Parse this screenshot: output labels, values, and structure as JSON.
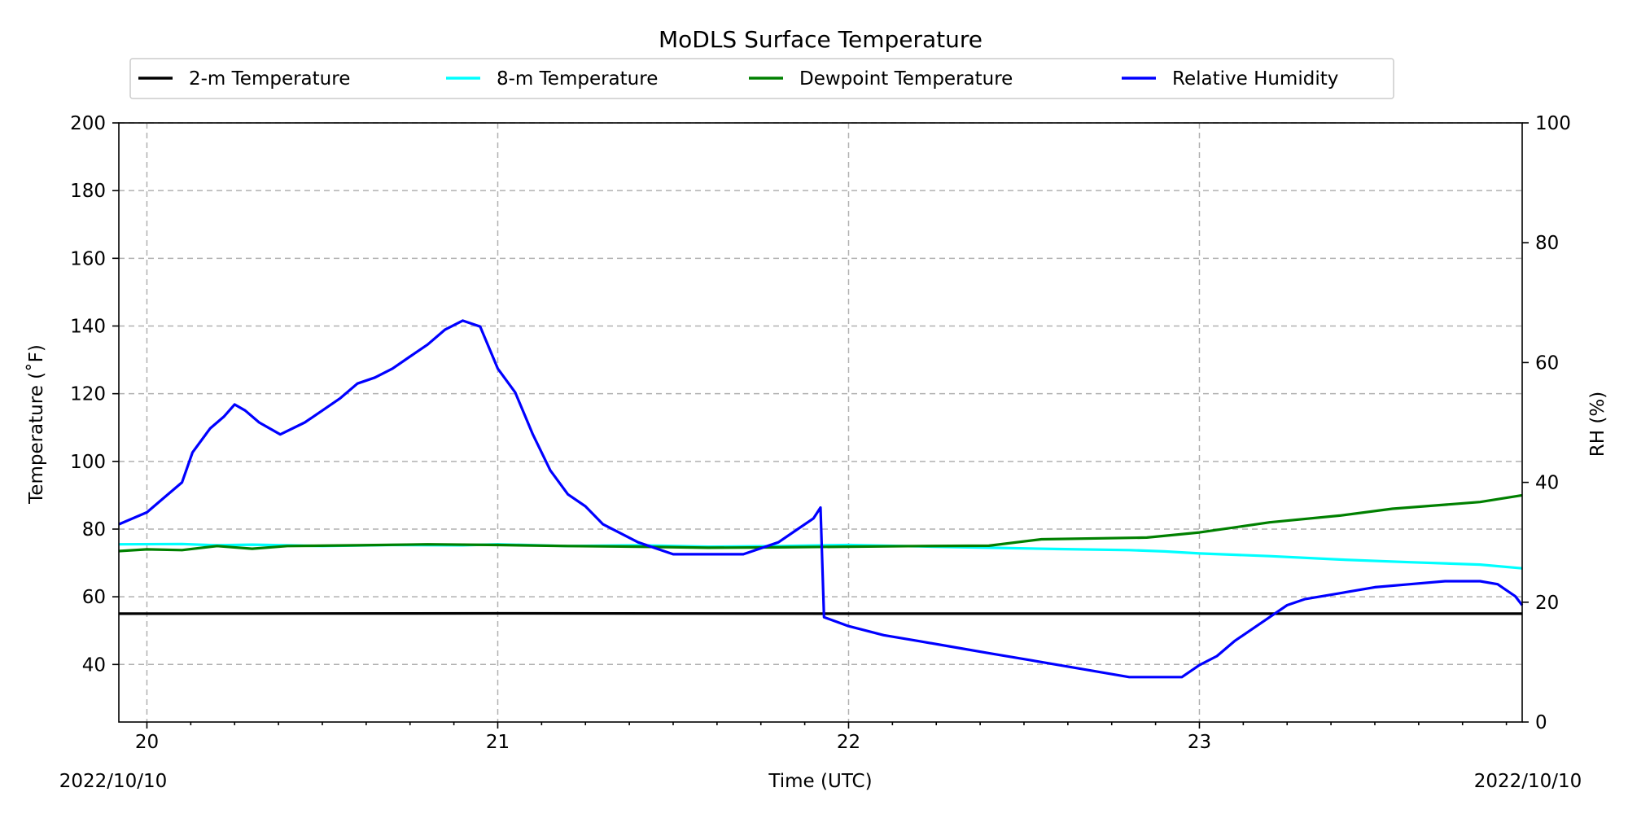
{
  "chart_data": {
    "type": "line",
    "title": "MoDLS Surface Temperature",
    "xlabel": "Time (UTC)",
    "ylabel_left": "Temperature ($^\\circ$F)",
    "ylabel_left_display": "Temperature (˚F)",
    "ylabel_right": "RH (%)",
    "x_start_label": "2022/10/10",
    "x_end_label": "2022/10/10",
    "xlim": [
      19.92,
      23.92
    ],
    "xticks": [
      20,
      21,
      22,
      23
    ],
    "xtick_labels": [
      "20",
      "21",
      "22",
      "23"
    ],
    "ylim_left": [
      23,
      200
    ],
    "yticks_left": [
      40,
      60,
      80,
      100,
      120,
      140,
      160,
      180,
      200
    ],
    "ylim_right": [
      0,
      100
    ],
    "yticks_right": [
      0,
      20,
      40,
      60,
      80,
      100
    ],
    "grid": true,
    "legend_position": "top-center",
    "series": [
      {
        "name": "2-m Temperature",
        "color": "#000000",
        "axis": "left",
        "x": [
          19.92,
          21.0,
          22.0,
          23.0,
          23.92
        ],
        "y": [
          55.0,
          55.1,
          55.0,
          55.0,
          55.0
        ]
      },
      {
        "name": "8-m Temperature",
        "color": "#00ffff",
        "axis": "left",
        "x": [
          19.92,
          20.1,
          20.2,
          20.3,
          20.5,
          20.7,
          20.9,
          21.0,
          21.2,
          21.4,
          21.6,
          21.8,
          22.0,
          22.2,
          22.4,
          22.6,
          22.8,
          22.9,
          23.0,
          23.2,
          23.4,
          23.6,
          23.8,
          23.92
        ],
        "y": [
          75.5,
          75.6,
          75.2,
          75.4,
          75.0,
          75.3,
          75.2,
          75.5,
          75.0,
          75.2,
          74.8,
          75.0,
          75.3,
          74.9,
          74.5,
          74.1,
          73.8,
          73.4,
          72.8,
          72.0,
          71.0,
          70.2,
          69.5,
          68.4
        ]
      },
      {
        "name": "Dewpoint Temperature",
        "color": "#008000",
        "axis": "left",
        "x": [
          19.92,
          20.0,
          20.1,
          20.2,
          20.3,
          20.4,
          20.6,
          20.8,
          21.0,
          21.2,
          21.4,
          21.6,
          21.8,
          22.0,
          22.2,
          22.4,
          22.55,
          22.85,
          23.0,
          23.1,
          23.2,
          23.4,
          23.55,
          23.8,
          23.92
        ],
        "y": [
          73.5,
          74.0,
          73.8,
          75.0,
          74.2,
          75.0,
          75.2,
          75.5,
          75.3,
          75.0,
          74.8,
          74.5,
          74.6,
          74.8,
          75.0,
          75.1,
          77.0,
          77.5,
          79.0,
          80.5,
          82.0,
          84.0,
          86.0,
          88.0,
          90.0
        ]
      },
      {
        "name": "Relative Humidity",
        "color": "#0000ff",
        "axis": "right",
        "x": [
          19.92,
          20.0,
          20.05,
          20.1,
          20.13,
          20.18,
          20.22,
          20.25,
          20.28,
          20.32,
          20.38,
          20.45,
          20.5,
          20.55,
          20.6,
          20.65,
          20.7,
          20.75,
          20.8,
          20.85,
          20.9,
          20.95,
          21.0,
          21.05,
          21.1,
          21.15,
          21.2,
          21.25,
          21.3,
          21.4,
          21.5,
          21.6,
          21.7,
          21.8,
          21.85,
          21.9,
          21.92,
          21.93,
          22.0,
          22.1,
          22.2,
          22.3,
          22.4,
          22.5,
          22.6,
          22.7,
          22.8,
          22.9,
          22.95,
          23.0,
          23.05,
          23.1,
          23.15,
          23.2,
          23.25,
          23.3,
          23.4,
          23.5,
          23.6,
          23.7,
          23.8,
          23.85,
          23.9,
          23.92
        ],
        "y": [
          33,
          35,
          37.5,
          40,
          45,
          49,
          51,
          53,
          52,
          50,
          48,
          50,
          52,
          54,
          56.5,
          57.5,
          59,
          61,
          63,
          65.5,
          67,
          66,
          59,
          55,
          48,
          42,
          38,
          36,
          33,
          30,
          28,
          28,
          28,
          30,
          32,
          34,
          35.8,
          17.5,
          16,
          14.5,
          13.5,
          12.5,
          11.5,
          10.5,
          9.5,
          8.5,
          7.5,
          7.5,
          7.5,
          9.5,
          11,
          13.5,
          15.5,
          17.5,
          19.5,
          20.5,
          21.5,
          22.5,
          23,
          23.5,
          23.5,
          23,
          21,
          19.5
        ]
      }
    ]
  }
}
